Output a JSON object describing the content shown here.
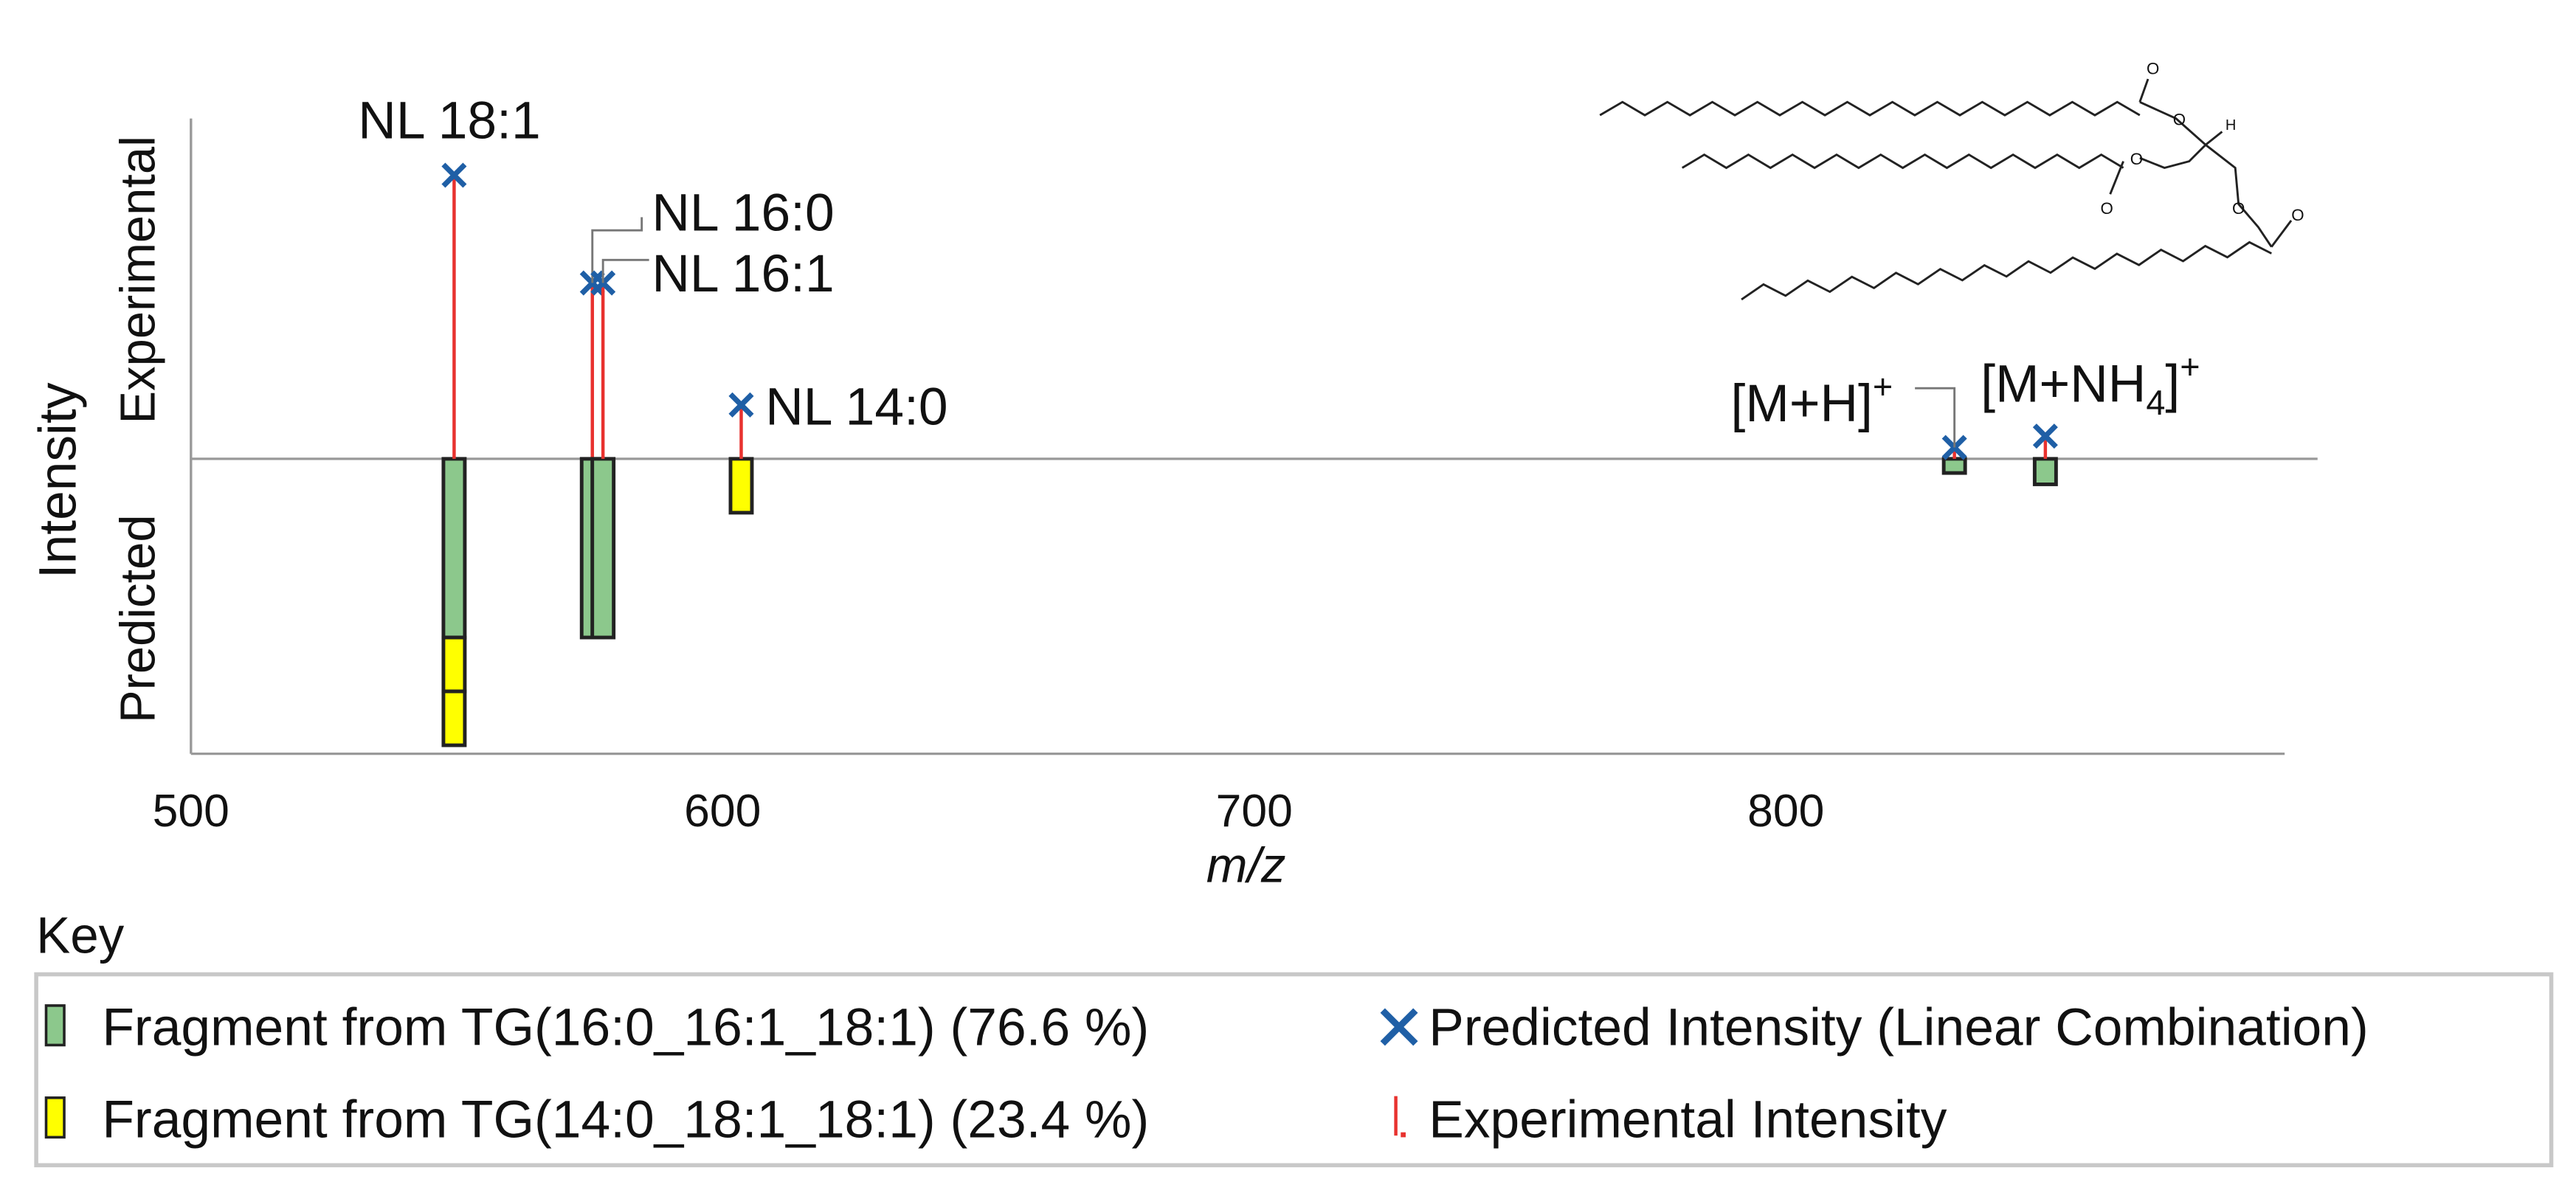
{
  "chart_data": {
    "type": "mirror-spectrum",
    "xlabel": "m/z",
    "ylabel": "Intensity",
    "upper_label": "Experimental",
    "lower_label": "Predicted",
    "xlim": [
      500,
      900
    ],
    "xticks": [
      500,
      600,
      700,
      800
    ],
    "ylim": [
      -104,
      120
    ],
    "experimental_color": "#e8322f",
    "predicted_color": "#1f5fa6",
    "peaks": [
      {
        "label": [
          {
            "text": "NL 18:1"
          }
        ],
        "mz": 549.5,
        "experimental": 100,
        "predicted": 100,
        "fragments": [
          {
            "value": 63,
            "color": "#8cc88c"
          },
          {
            "value": 19,
            "color": "#ffff00"
          },
          {
            "value": 19,
            "color": "#ffff00"
          }
        ]
      },
      {
        "label": [
          {
            "text": "NL 16:0"
          }
        ],
        "mz": 575.5,
        "experimental": 62,
        "predicted": 62,
        "fragments": [
          {
            "value": 63,
            "color": "#8cc88c"
          }
        ]
      },
      {
        "label": [
          {
            "text": "NL 16:1"
          }
        ],
        "mz": 577.5,
        "experimental": 62,
        "predicted": 62,
        "fragments": [
          {
            "value": 63,
            "color": "#8cc88c"
          }
        ]
      },
      {
        "label": [
          {
            "text": "NL 14:0"
          }
        ],
        "mz": 603.5,
        "experimental": 19,
        "predicted": 19,
        "fragments": [
          {
            "value": 19,
            "color": "#ffff00"
          }
        ]
      },
      {
        "label": [
          {
            "text": "[M+H]"
          },
          {
            "text": "+",
            "shift": "super"
          }
        ],
        "mz": 831.7,
        "experimental": 3,
        "predicted": 4,
        "fragments": [
          {
            "value": 5,
            "color": "#8cc88c"
          }
        ]
      },
      {
        "label": [
          {
            "text": "[M+NH"
          },
          {
            "text": "4",
            "shift": "sub"
          },
          {
            "text": "]"
          },
          {
            "text": "+",
            "shift": "super"
          }
        ],
        "mz": 848.8,
        "experimental": 8,
        "predicted": 8,
        "fragments": [
          {
            "value": 9,
            "color": "#8cc88c"
          }
        ]
      }
    ],
    "legend": {
      "title": "Key",
      "entries": [
        {
          "text": "Fragment from TG(16:0_16:1_18:1) (76.6 %)",
          "marker": "box",
          "color": "#8cc88c"
        },
        {
          "text": "Fragment from TG(14:0_18:1_18:1) (23.4 %)",
          "marker": "box",
          "color": "#ffff00"
        },
        {
          "text": "Predicted Intensity (Linear Combination)",
          "marker": "cross",
          "color": "#1f5fa6"
        },
        {
          "text": "Experimental Intensity",
          "marker": "line",
          "color": "#e8322f"
        }
      ]
    }
  },
  "structure": {
    "oxygen": "O",
    "hydrogen": "H"
  }
}
